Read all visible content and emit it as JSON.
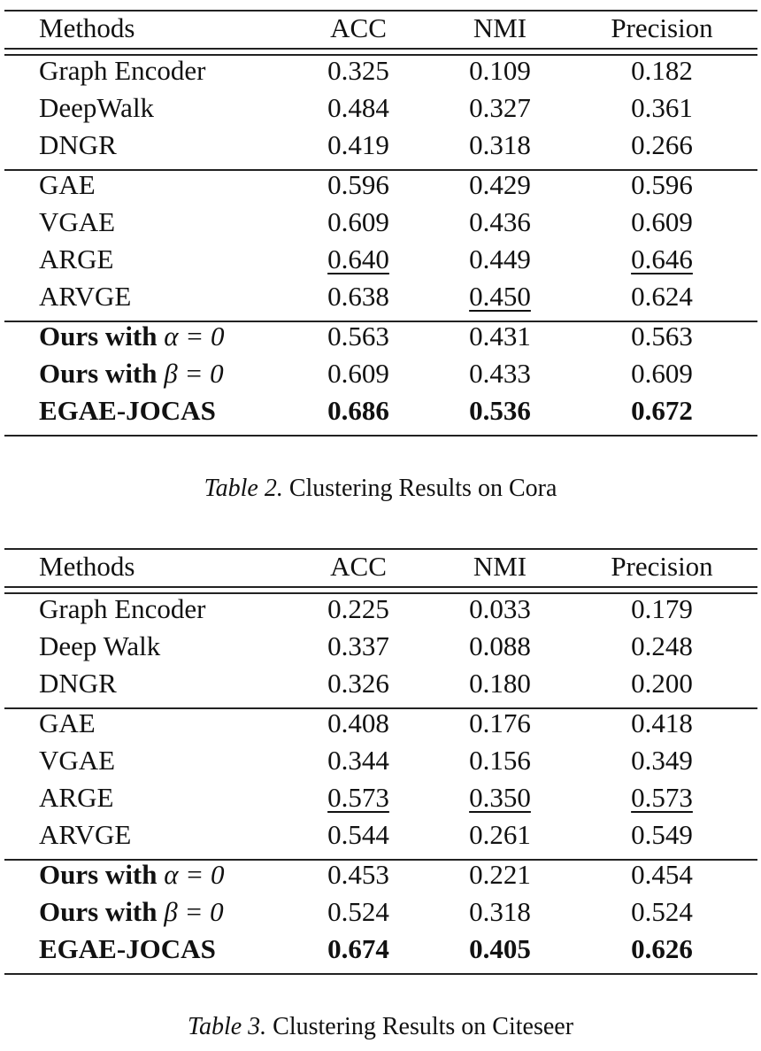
{
  "tables": [
    {
      "header": [
        "Methods",
        "ACC",
        "NMI",
        "Precision"
      ],
      "groups": [
        [
          {
            "method": "Graph Encoder",
            "values": [
              "0.325",
              "0.109",
              "0.182"
            ]
          },
          {
            "method": "DeepWalk",
            "values": [
              "0.484",
              "0.327",
              "0.361"
            ]
          },
          {
            "method": "DNGR",
            "values": [
              "0.419",
              "0.318",
              "0.266"
            ]
          }
        ],
        [
          {
            "method": "GAE",
            "values": [
              "0.596",
              "0.429",
              "0.596"
            ]
          },
          {
            "method": "VGAE",
            "values": [
              "0.609",
              "0.436",
              "0.609"
            ]
          },
          {
            "method": "ARGE",
            "values": [
              "0.640",
              "0.449",
              "0.646"
            ],
            "underline": [
              true,
              false,
              true
            ]
          },
          {
            "method": "ARVGE",
            "values": [
              "0.638",
              "0.450",
              "0.624"
            ],
            "underline": [
              false,
              true,
              false
            ]
          }
        ],
        [
          {
            "method": "Ours with",
            "math": "α = 0",
            "method_bold": true,
            "values": [
              "0.563",
              "0.431",
              "0.563"
            ]
          },
          {
            "method": "Ours with",
            "math": "β = 0",
            "method_bold": true,
            "values": [
              "0.609",
              "0.433",
              "0.609"
            ]
          },
          {
            "method": "EGAE-JOCAS",
            "method_bold": true,
            "values_bold": true,
            "values": [
              "0.686",
              "0.536",
              "0.672"
            ]
          }
        ]
      ],
      "caption_label": "Table 2.",
      "caption_text": "Clustering Results on Cora"
    },
    {
      "header": [
        "Methods",
        "ACC",
        "NMI",
        "Precision"
      ],
      "groups": [
        [
          {
            "method": "Graph Encoder",
            "values": [
              "0.225",
              "0.033",
              "0.179"
            ]
          },
          {
            "method": "Deep Walk",
            "values": [
              "0.337",
              "0.088",
              "0.248"
            ]
          },
          {
            "method": "DNGR",
            "values": [
              "0.326",
              "0.180",
              "0.200"
            ]
          }
        ],
        [
          {
            "method": "GAE",
            "values": [
              "0.408",
              "0.176",
              "0.418"
            ]
          },
          {
            "method": "VGAE",
            "values": [
              "0.344",
              "0.156",
              "0.349"
            ]
          },
          {
            "method": "ARGE",
            "values": [
              "0.573",
              "0.350",
              "0.573"
            ],
            "underline": [
              true,
              true,
              true
            ]
          },
          {
            "method": "ARVGE",
            "values": [
              "0.544",
              "0.261",
              "0.549"
            ]
          }
        ],
        [
          {
            "method": "Ours with",
            "math": "α = 0",
            "method_bold": true,
            "values": [
              "0.453",
              "0.221",
              "0.454"
            ]
          },
          {
            "method": "Ours with",
            "math": "β = 0",
            "method_bold": true,
            "values": [
              "0.524",
              "0.318",
              "0.524"
            ]
          },
          {
            "method": "EGAE-JOCAS",
            "method_bold": true,
            "values_bold": true,
            "values": [
              "0.674",
              "0.405",
              "0.626"
            ]
          }
        ]
      ],
      "caption_label": "Table 3.",
      "caption_text": "Clustering Results on Citeseer"
    }
  ]
}
